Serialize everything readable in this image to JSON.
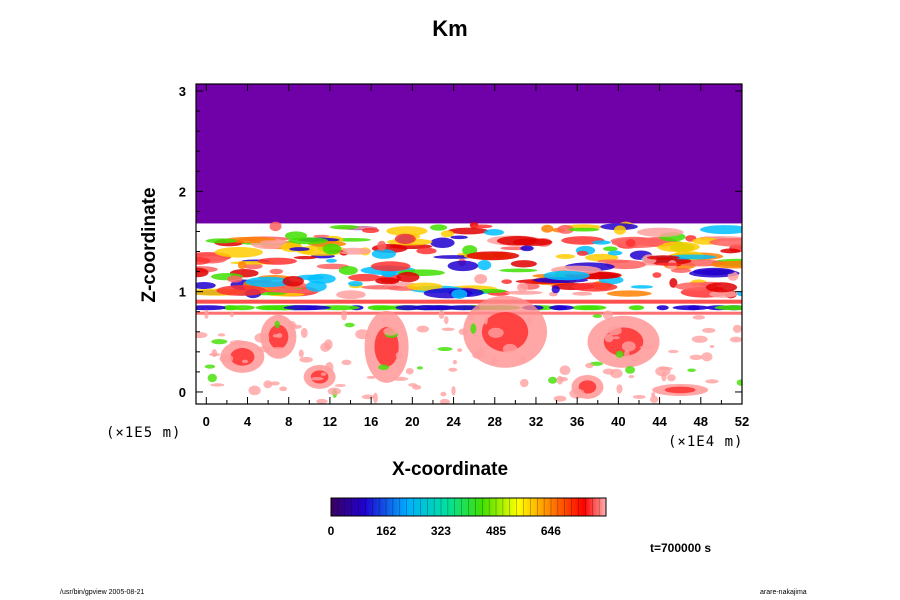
{
  "chart_data": {
    "type": "heatmap",
    "title": "Km",
    "xlabel": "X-coordinate",
    "ylabel": "Z-coordinate",
    "x_factor_label": "(×1E4 m)",
    "z_factor_label": "(×1E5 m)",
    "x_ticks": [
      "0",
      "4",
      "8",
      "12",
      "16",
      "20",
      "24",
      "28",
      "32",
      "36",
      "40",
      "44",
      "48",
      "52"
    ],
    "y_ticks": [
      "0",
      "1",
      "2",
      "3"
    ],
    "xlim": [
      -1,
      52
    ],
    "ylim": [
      -0.12,
      3.07
    ],
    "colorbar": {
      "labels": [
        "0",
        "162",
        "323",
        "485",
        "646"
      ],
      "range": [
        0,
        808
      ]
    },
    "time_label": "t=700000 s",
    "regions": [
      {
        "name": "upper-uniform-layer",
        "z_range": [
          1.68,
          3.07
        ],
        "level": "minimum"
      },
      {
        "name": "turbulent-band-upper",
        "z_range": [
          0.95,
          1.68
        ],
        "level": "mixed"
      },
      {
        "name": "inversion-layer",
        "z_range": [
          0.82,
          0.95
        ],
        "level": "mixed"
      },
      {
        "name": "lower-cells",
        "z_range": [
          -0.12,
          0.82
        ],
        "level": "mixed"
      }
    ]
  },
  "footer": {
    "left": "/usr/bin/gpview 2005-08-21",
    "right": "arare-nakajima"
  },
  "colors": {
    "upper_layer": "#7000a8",
    "frame": "#000000"
  }
}
